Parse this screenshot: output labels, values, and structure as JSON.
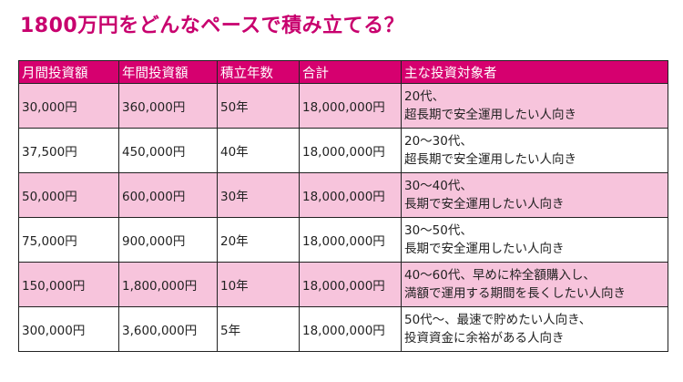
{
  "page": {
    "title": "1800万円をどんなペースで積み立てる？"
  },
  "table": {
    "headers": [
      "月間投資額",
      "年間投資額",
      "積立年数",
      "合計",
      "主な投資対象者"
    ],
    "rows": [
      {
        "monthly": "30,000円",
        "yearly": "360,000円",
        "years": "50年",
        "total": "18,000,000円",
        "target": [
          "20代、",
          "超長期で安全運用したい人向き"
        ]
      },
      {
        "monthly": "37,500円",
        "yearly": "450,000円",
        "years": "40年",
        "total": "18,000,000円",
        "target": [
          "20～30代、",
          "超長期で安全運用したい人向き"
        ]
      },
      {
        "monthly": "50,000円",
        "yearly": "600,000円",
        "years": "30年",
        "total": "18,000,000円",
        "target": [
          "30～40代、",
          "長期で安全運用したい人向き"
        ]
      },
      {
        "monthly": "75,000円",
        "yearly": "900,000円",
        "years": "20年",
        "total": "18,000,000円",
        "target": [
          "30～50代、",
          "長期で安全運用したい人向き"
        ]
      },
      {
        "monthly": "150,000円",
        "yearly": "1,800,000円",
        "years": "10年",
        "total": "18,000,000円",
        "target": [
          "40～60代、早めに枠全額購入し、",
          "満額で運用する期間を長くしたい人向き"
        ]
      },
      {
        "monthly": "300,000円",
        "yearly": "3,600,000円",
        "years": "5年",
        "total": "18,000,000円",
        "target": [
          "50代～、最速で貯めたい人向き、",
          "投資資金に余裕がある人向き"
        ]
      }
    ]
  },
  "colors": {
    "title": "#c8006e",
    "header_bg": "#d6006f",
    "row_pink": "#f7c4dc",
    "row_white": "#ffffff"
  }
}
